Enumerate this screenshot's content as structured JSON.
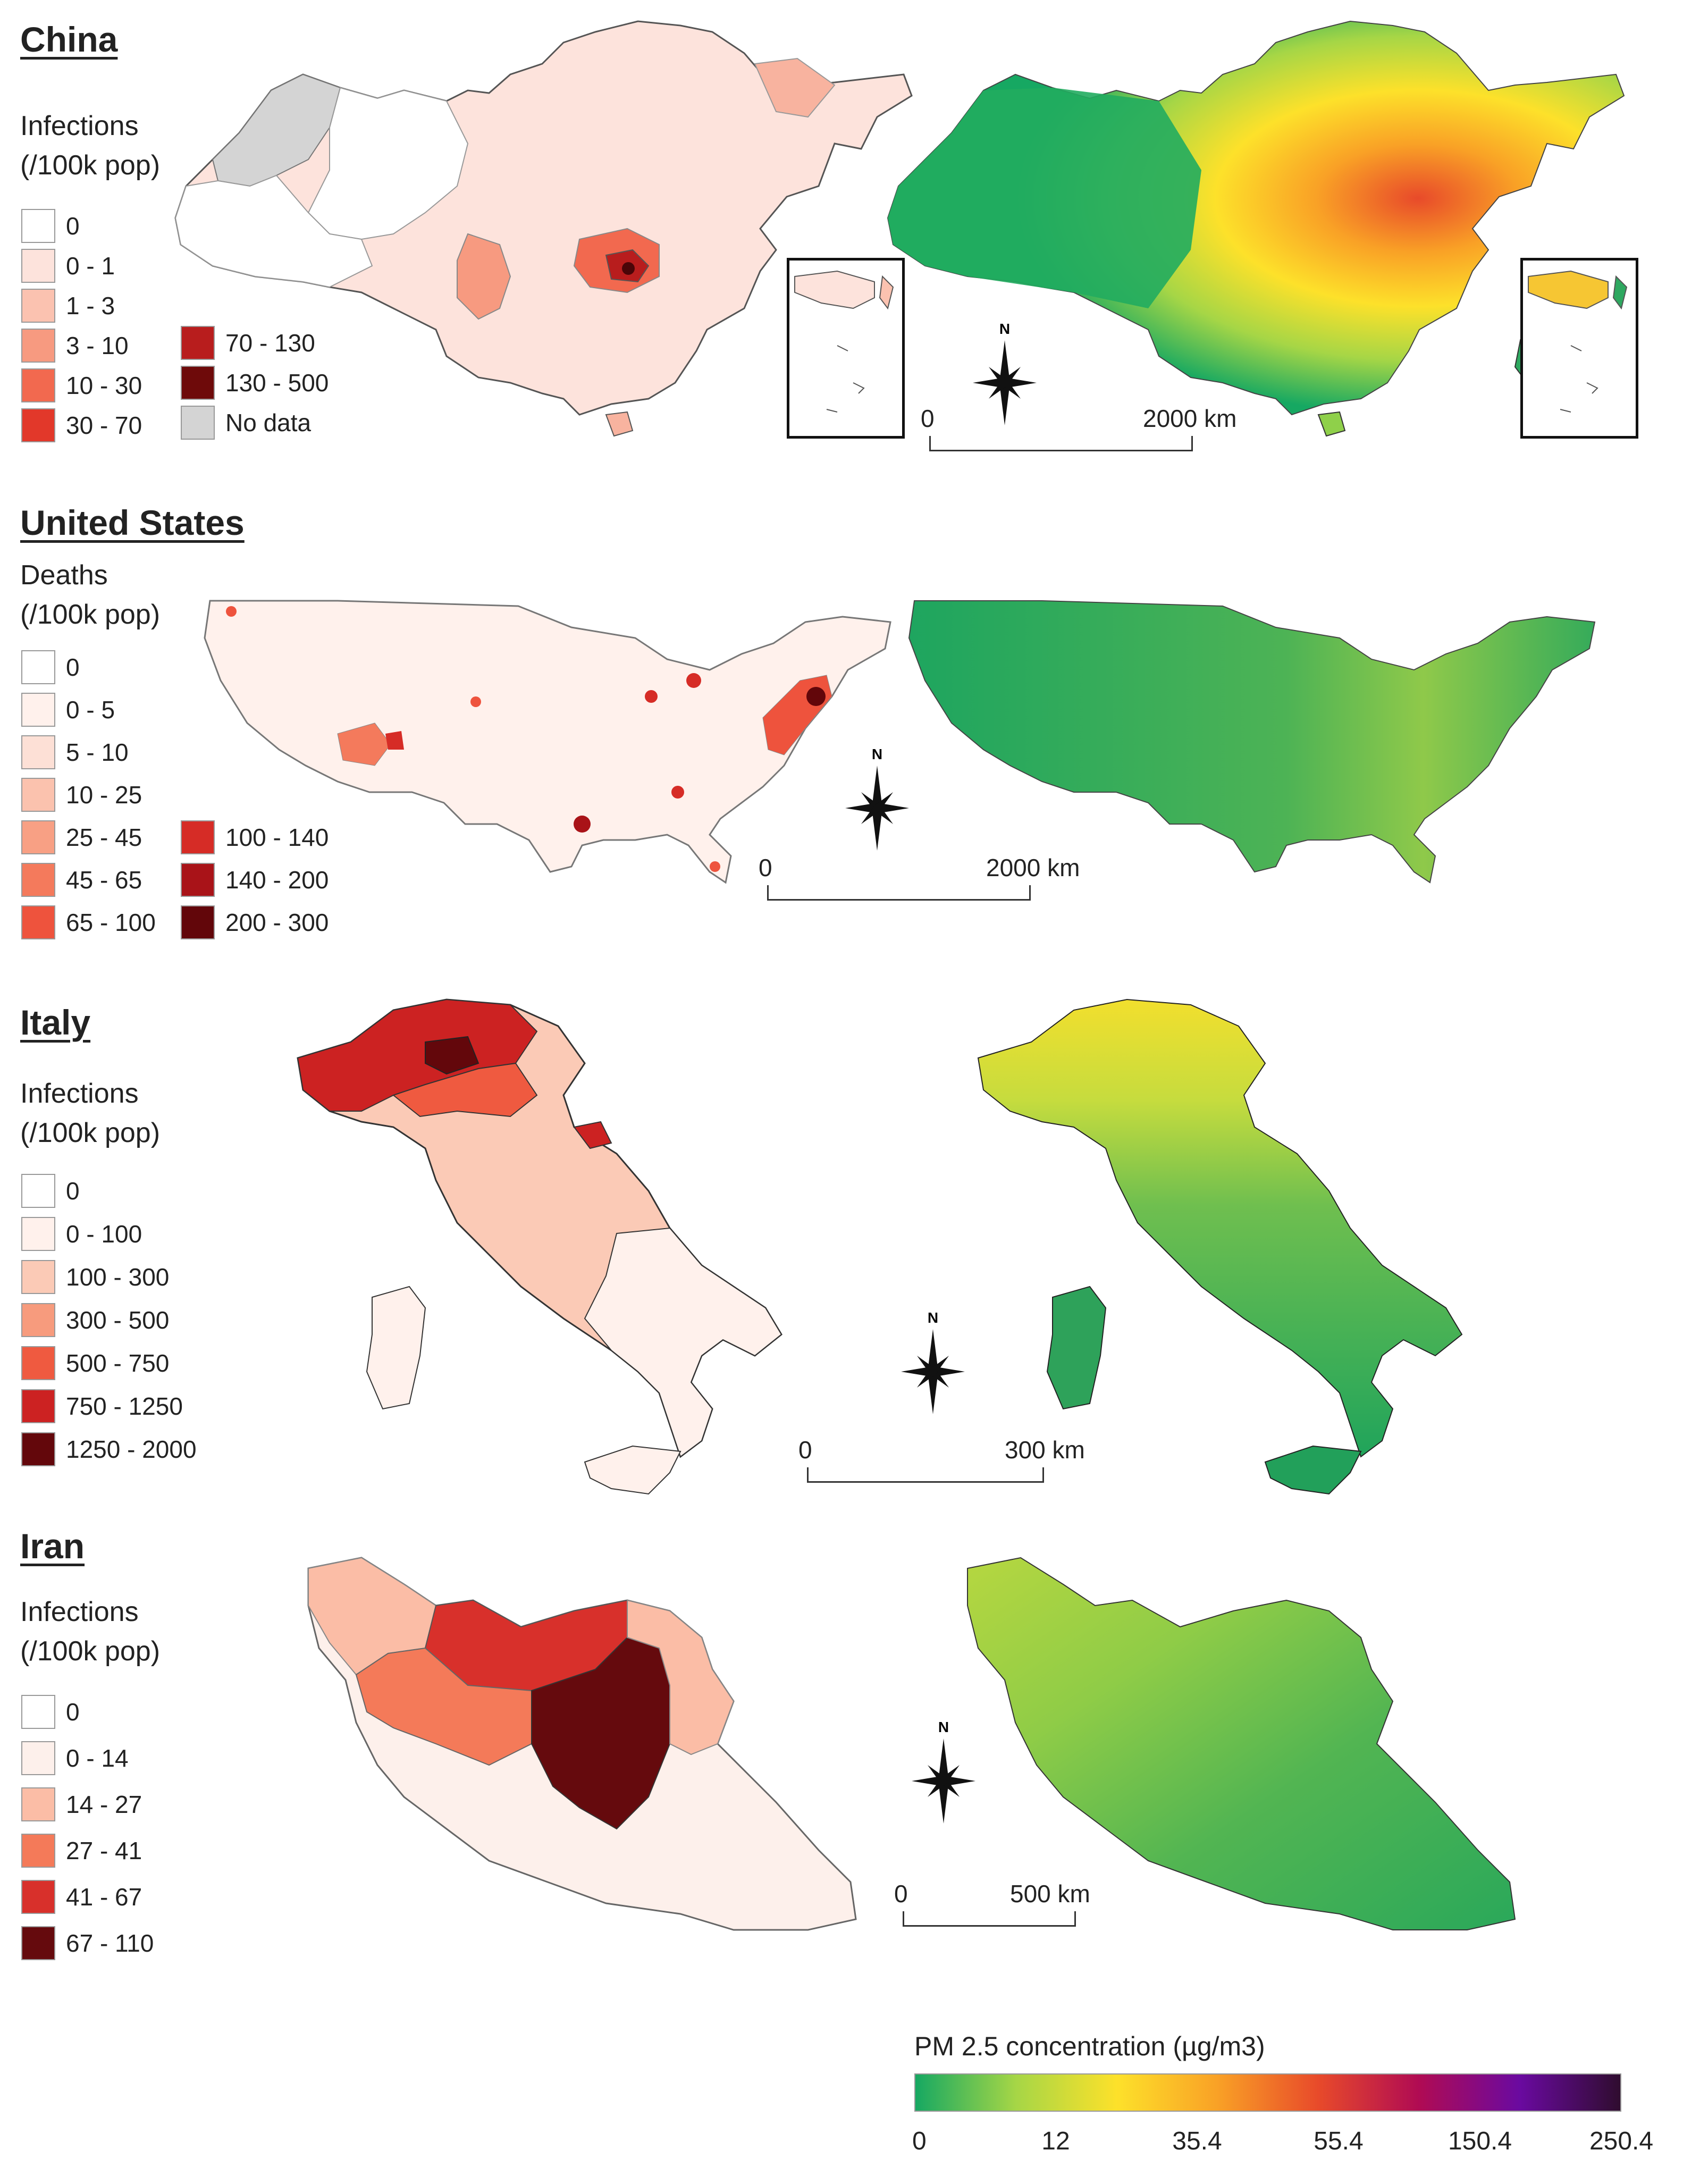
{
  "panels": {
    "china": {
      "title": "China",
      "legend_label": "Infections\n(/100k pop)",
      "classes": [
        {
          "label": "0",
          "color": "#ffffff"
        },
        {
          "label": "0 - 1",
          "color": "#fde3dc"
        },
        {
          "label": "1 - 3",
          "color": "#fbc2b0"
        },
        {
          "label": "3 - 10",
          "color": "#f79a80"
        },
        {
          "label": "10 - 30",
          "color": "#f2694f"
        },
        {
          "label": "30 - 70",
          "color": "#e2382a"
        },
        {
          "label": "70 - 130",
          "color": "#b81d1d"
        },
        {
          "label": "130 - 500",
          "color": "#6e0a0a"
        },
        {
          "label": "No data",
          "color": "#d4d4d4"
        }
      ],
      "scale": {
        "start": "0",
        "end": "2000 km"
      }
    },
    "us": {
      "title": "United States",
      "legend_label": "Deaths\n(/100k pop)",
      "classes": [
        {
          "label": "0",
          "color": "#ffffff"
        },
        {
          "label": "0 - 5",
          "color": "#fff1ec"
        },
        {
          "label": "5 - 10",
          "color": "#fde0d6"
        },
        {
          "label": "10 - 25",
          "color": "#fbc2ae"
        },
        {
          "label": "25 - 45",
          "color": "#f8a084"
        },
        {
          "label": "45 - 65",
          "color": "#f47a5c"
        },
        {
          "label": "65 - 100",
          "color": "#ee533d"
        },
        {
          "label": "100 - 140",
          "color": "#d62c26"
        },
        {
          "label": "140 - 200",
          "color": "#a91318"
        },
        {
          "label": "200 - 300",
          "color": "#62060a"
        }
      ],
      "scale": {
        "start": "0",
        "end": "2000 km"
      }
    },
    "italy": {
      "title": "Italy",
      "legend_label": "Infections\n(/100k pop)",
      "classes": [
        {
          "label": "0",
          "color": "#ffffff"
        },
        {
          "label": "0 - 100",
          "color": "#fff1ec"
        },
        {
          "label": "100 - 300",
          "color": "#fbcab6"
        },
        {
          "label": "300 - 500",
          "color": "#f79b7d"
        },
        {
          "label": "500 - 750",
          "color": "#ef5a40"
        },
        {
          "label": "750 - 1250",
          "color": "#cc2222"
        },
        {
          "label": "1250 - 2000",
          "color": "#63070b"
        }
      ],
      "scale": {
        "start": "0",
        "end": "300 km"
      }
    },
    "iran": {
      "title": "Iran",
      "legend_label": "Infections\n(/100k pop)",
      "classes": [
        {
          "label": "0",
          "color": "#ffffff"
        },
        {
          "label": "0 - 14",
          "color": "#fdf0eb"
        },
        {
          "label": "14 - 27",
          "color": "#fbbda6"
        },
        {
          "label": "27 - 41",
          "color": "#f47a59"
        },
        {
          "label": "41 - 67",
          "color": "#d8302b"
        },
        {
          "label": "67 - 110",
          "color": "#650a0d"
        }
      ],
      "scale": {
        "start": "0",
        "end": "500 km"
      }
    }
  },
  "compass_label": "N",
  "colorbar": {
    "title": "PM 2.5 concentration (µg/m3)",
    "ticks": [
      "0",
      "12",
      "35.4",
      "55.4",
      "150.4",
      "250.4"
    ],
    "colors": [
      "#16a862",
      "#a6d646",
      "#fde12a",
      "#f9a126",
      "#e84a2a",
      "#b00b53",
      "#6a0aa0",
      "#2f0c2f"
    ]
  }
}
